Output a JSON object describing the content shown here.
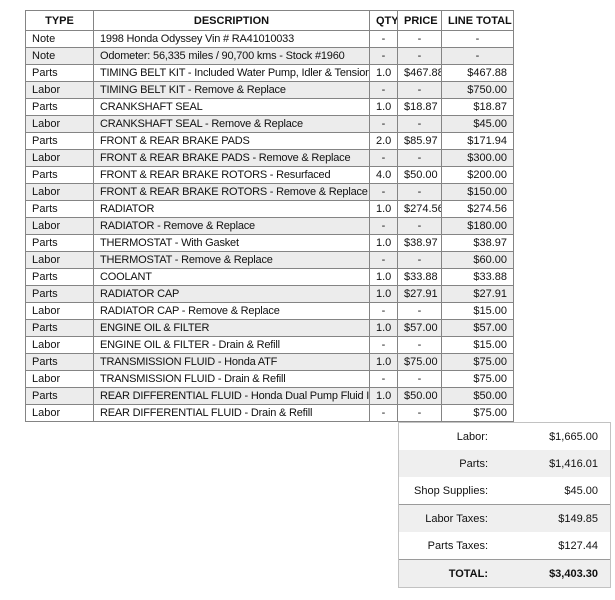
{
  "table": {
    "headers": [
      "TYPE",
      "DESCRIPTION",
      "QTY",
      "PRICE",
      "LINE TOTAL"
    ],
    "rows": [
      {
        "type": "Note",
        "description": "1998 Honda Odyssey Vin # RA41010033",
        "qty": "-",
        "price": "-",
        "line_total": "-"
      },
      {
        "type": "Note",
        "description": "Odometer: 56,335 miles / 90,700 kms - Stock #1960",
        "qty": "-",
        "price": "-",
        "line_total": "-"
      },
      {
        "type": "Parts",
        "description": "TIMING BELT KIT - Included Water Pump, Idler & Tensioner",
        "qty": "1.0",
        "price": "$467.88",
        "line_total": "$467.88"
      },
      {
        "type": "Labor",
        "description": "TIMING BELT KIT - Remove & Replace",
        "qty": "-",
        "price": "-",
        "line_total": "$750.00"
      },
      {
        "type": "Parts",
        "description": "CRANKSHAFT SEAL",
        "qty": "1.0",
        "price": "$18.87",
        "line_total": "$18.87"
      },
      {
        "type": "Labor",
        "description": "CRANKSHAFT SEAL - Remove & Replace",
        "qty": "-",
        "price": "-",
        "line_total": "$45.00"
      },
      {
        "type": "Parts",
        "description": "FRONT & REAR BRAKE PADS",
        "qty": "2.0",
        "price": "$85.97",
        "line_total": "$171.94"
      },
      {
        "type": "Labor",
        "description": "FRONT & REAR BRAKE PADS - Remove & Replace",
        "qty": "-",
        "price": "-",
        "line_total": "$300.00"
      },
      {
        "type": "Parts",
        "description": "FRONT & REAR BRAKE ROTORS - Resurfaced",
        "qty": "4.0",
        "price": "$50.00",
        "line_total": "$200.00"
      },
      {
        "type": "Labor",
        "description": "FRONT & REAR BRAKE ROTORS - Remove & Replace",
        "qty": "-",
        "price": "-",
        "line_total": "$150.00"
      },
      {
        "type": "Parts",
        "description": "RADIATOR",
        "qty": "1.0",
        "price": "$274.56",
        "line_total": "$274.56"
      },
      {
        "type": "Labor",
        "description": "RADIATOR - Remove & Replace",
        "qty": "-",
        "price": "-",
        "line_total": "$180.00"
      },
      {
        "type": "Parts",
        "description": "THERMOSTAT - With Gasket",
        "qty": "1.0",
        "price": "$38.97",
        "line_total": "$38.97"
      },
      {
        "type": "Labor",
        "description": "THERMOSTAT - Remove & Replace",
        "qty": "-",
        "price": "-",
        "line_total": "$60.00"
      },
      {
        "type": "Parts",
        "description": "COOLANT",
        "qty": "1.0",
        "price": "$33.88",
        "line_total": "$33.88"
      },
      {
        "type": "Parts",
        "description": "RADIATOR CAP",
        "qty": "1.0",
        "price": "$27.91",
        "line_total": "$27.91"
      },
      {
        "type": "Labor",
        "description": "RADIATOR CAP - Remove & Replace",
        "qty": "-",
        "price": "-",
        "line_total": "$15.00"
      },
      {
        "type": "Parts",
        "description": "ENGINE OIL & FILTER",
        "qty": "1.0",
        "price": "$57.00",
        "line_total": "$57.00"
      },
      {
        "type": "Labor",
        "description": "ENGINE OIL & FILTER - Drain & Refill",
        "qty": "-",
        "price": "-",
        "line_total": "$15.00"
      },
      {
        "type": "Parts",
        "description": "TRANSMISSION FLUID - Honda ATF",
        "qty": "1.0",
        "price": "$75.00",
        "line_total": "$75.00"
      },
      {
        "type": "Labor",
        "description": "TRANSMISSION FLUID - Drain & Refill",
        "qty": "-",
        "price": "-",
        "line_total": "$75.00"
      },
      {
        "type": "Parts",
        "description": "REAR DIFFERENTIAL FLUID - Honda Dual Pump Fluid II",
        "qty": "1.0",
        "price": "$50.00",
        "line_total": "$50.00"
      },
      {
        "type": "Labor",
        "description": "REAR DIFFERENTIAL FLUID - Drain & Refill",
        "qty": "-",
        "price": "-",
        "line_total": "$75.00"
      }
    ]
  },
  "summary": {
    "rows": [
      {
        "label": "Labor:",
        "value": "$1,665.00"
      },
      {
        "label": "Parts:",
        "value": "$1,416.01"
      },
      {
        "label": "Shop Supplies:",
        "value": "$45.00"
      },
      {
        "label": "Labor Taxes:",
        "value": "$149.85"
      },
      {
        "label": "Parts Taxes:",
        "value": "$127.44"
      },
      {
        "label": "TOTAL:",
        "value": "$3,403.30"
      }
    ]
  },
  "colors": {
    "row_stripe": "#ececec",
    "summary_stripe": "#efefef",
    "table_border": "#848484",
    "summary_border": "#c2c2c2",
    "summary_separator": "#9a9a9a",
    "text": "#111111"
  }
}
